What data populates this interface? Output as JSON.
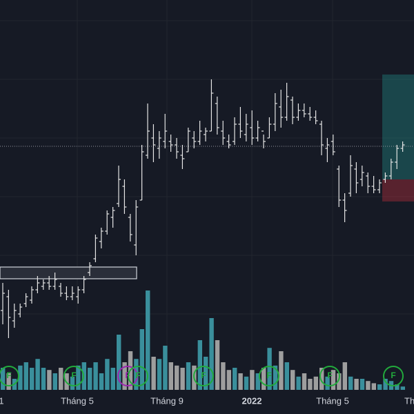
{
  "chart_data": {
    "type": "ohlc",
    "ylim": [
      0,
      600
    ],
    "volume_lim": [
      0,
      100
    ],
    "up_color": "#3a8f9c",
    "down_color": "#9e9e9e",
    "bar_color": "#e6e6e6",
    "price_line": 388,
    "zone": [
      196,
      213
    ],
    "position": {
      "target": 492,
      "entry": 340,
      "stop": 308
    },
    "x_labels": [
      "1",
      "Tháng 5",
      "Tháng 9",
      "2022",
      "Tháng 5",
      "Th"
    ],
    "events": [
      {
        "label": "F",
        "color": "#22ab3c"
      },
      {
        "label": "F",
        "color": "#22ab3c"
      },
      {
        "label": "F",
        "color": "#9c27b0"
      },
      {
        "label": "F",
        "color": "#22ab3c"
      },
      {
        "label": "F",
        "color": "#22ab3c"
      },
      {
        "label": "F",
        "color": "#22ab3c"
      },
      {
        "label": "F",
        "color": "#22ab3c"
      },
      {
        "label": "F",
        "color": "#22ab3c"
      }
    ],
    "open": [
      150,
      170,
      135,
      145,
      160,
      165,
      180,
      185,
      190,
      185,
      185,
      175,
      170,
      170,
      180,
      205,
      225,
      250,
      265,
      285,
      305,
      330,
      285,
      245,
      310,
      375,
      400,
      385,
      395,
      395,
      390,
      375,
      380,
      400,
      395,
      405,
      410,
      450,
      410,
      395,
      395,
      420,
      405,
      415,
      400,
      410,
      400,
      420,
      445,
      430,
      455,
      430,
      440,
      435,
      430,
      420,
      385,
      395,
      355,
      310,
      320,
      355,
      340,
      345,
      330,
      325,
      340,
      345,
      365,
      385
    ],
    "high": [
      190,
      180,
      160,
      160,
      175,
      185,
      200,
      195,
      200,
      205,
      190,
      185,
      185,
      185,
      200,
      220,
      260,
      270,
      295,
      300,
      360,
      340,
      290,
      310,
      390,
      450,
      420,
      410,
      435,
      405,
      400,
      390,
      415,
      410,
      425,
      415,
      485,
      460,
      425,
      405,
      430,
      445,
      435,
      440,
      425,
      405,
      430,
      465,
      470,
      480,
      460,
      450,
      450,
      445,
      440,
      425,
      400,
      405,
      360,
      320,
      375,
      365,
      360,
      350,
      345,
      340,
      350,
      370,
      390,
      395
    ],
    "low": [
      130,
      110,
      125,
      140,
      155,
      160,
      175,
      180,
      180,
      180,
      170,
      165,
      165,
      160,
      175,
      200,
      220,
      240,
      260,
      270,
      300,
      290,
      250,
      230,
      310,
      370,
      365,
      370,
      385,
      380,
      370,
      355,
      380,
      385,
      390,
      395,
      410,
      405,
      390,
      385,
      390,
      400,
      395,
      390,
      395,
      385,
      400,
      410,
      415,
      425,
      420,
      425,
      430,
      425,
      420,
      375,
      365,
      375,
      300,
      278,
      315,
      320,
      330,
      320,
      320,
      320,
      335,
      340,
      355,
      380
    ],
    "close": [
      175,
      140,
      150,
      155,
      170,
      180,
      190,
      190,
      185,
      195,
      175,
      170,
      175,
      180,
      195,
      215,
      255,
      265,
      290,
      295,
      340,
      300,
      260,
      300,
      380,
      410,
      390,
      400,
      410,
      390,
      380,
      370,
      410,
      395,
      410,
      410,
      465,
      415,
      400,
      390,
      420,
      410,
      420,
      400,
      415,
      395,
      420,
      450,
      430,
      460,
      430,
      440,
      435,
      430,
      425,
      390,
      390,
      380,
      310,
      295,
      360,
      335,
      350,
      330,
      325,
      335,
      345,
      365,
      385,
      390
    ],
    "volume": [
      20,
      15,
      10,
      22,
      25,
      20,
      28,
      20,
      18,
      15,
      20,
      15,
      12,
      22,
      25,
      20,
      25,
      15,
      28,
      20,
      50,
      25,
      35,
      28,
      55,
      90,
      30,
      28,
      40,
      25,
      22,
      20,
      25,
      22,
      45,
      30,
      65,
      45,
      25,
      18,
      20,
      15,
      12,
      18,
      15,
      20,
      38,
      22,
      35,
      25,
      18,
      12,
      15,
      10,
      12,
      20,
      12,
      18,
      15,
      25,
      12,
      10,
      10,
      8,
      6,
      5,
      10,
      8,
      5,
      3
    ]
  }
}
